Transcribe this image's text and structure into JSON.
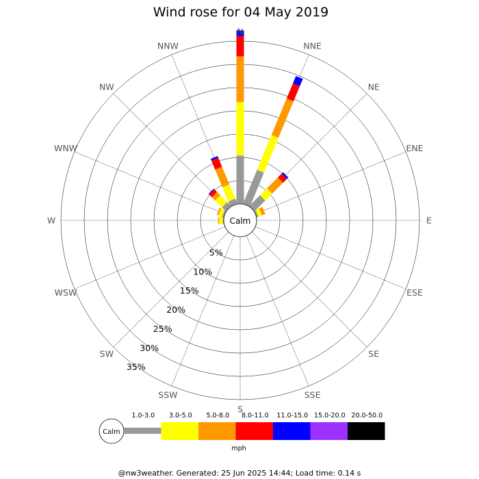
{
  "chart_data": {
    "type": "polar-bar",
    "title": "Wind rose for 04 May 2019",
    "directions": [
      "N",
      "NNE",
      "NE",
      "ENE",
      "E",
      "ESE",
      "SE",
      "SSE",
      "S",
      "SSW",
      "SW",
      "WSW",
      "W",
      "WNW",
      "NW",
      "NNW"
    ],
    "radial_ticks": [
      5,
      10,
      15,
      20,
      25,
      30,
      35
    ],
    "radial_tick_labels": [
      "5%",
      "10%",
      "15%",
      "20%",
      "25%",
      "30%",
      "35%"
    ],
    "radial_max": 35,
    "calm_label": "Calm",
    "unit": "mph",
    "legend_position": "bottom",
    "series": [
      {
        "name": "1.0-3.0",
        "color": "#999999",
        "values": [
          10.4,
          7.9,
          3.3,
          0.4,
          0,
          0,
          0,
          0,
          0,
          0,
          0,
          0,
          0.2,
          0.4,
          1.2,
          1.2
        ]
      },
      {
        "name": "3.0-5.0",
        "color": "#ffff00",
        "values": [
          11.5,
          8.1,
          2.1,
          0.8,
          0,
          0,
          0,
          0,
          0,
          0,
          0,
          0,
          0.8,
          0.8,
          2.1,
          3.3
        ]
      },
      {
        "name": "5.0-8.0",
        "color": "#ff9900",
        "values": [
          9.8,
          8.5,
          3.3,
          0.8,
          0,
          0,
          0,
          0,
          0,
          0,
          0,
          0,
          0.2,
          0.4,
          1.0,
          4.1
        ]
      },
      {
        "name": "8.0-11.0",
        "color": "#ff0000",
        "values": [
          4.4,
          3.5,
          1.2,
          0,
          0,
          0,
          0,
          0,
          0,
          0,
          0,
          0,
          0,
          0,
          0.8,
          2.1
        ]
      },
      {
        "name": "11.0-15.0",
        "color": "#0000ff",
        "values": [
          1.2,
          1.7,
          0.4,
          0,
          0,
          0,
          0,
          0,
          0,
          0,
          0,
          0,
          0,
          0,
          0.2,
          0.4
        ]
      },
      {
        "name": "15.0-20.0",
        "color": "#9b30ff",
        "values": [
          0,
          0,
          0,
          0,
          0,
          0,
          0,
          0,
          0,
          0,
          0,
          0,
          0,
          0,
          0,
          0
        ]
      },
      {
        "name": "20.0-50.0",
        "color": "#000000",
        "values": [
          0,
          0,
          0,
          0,
          0,
          0,
          0,
          0,
          0,
          0,
          0,
          0,
          0,
          0,
          0,
          0
        ]
      }
    ]
  },
  "footer": "@nw3weather. Generated: 25 Jun 2025 14:44; Load time: 0.14 s"
}
